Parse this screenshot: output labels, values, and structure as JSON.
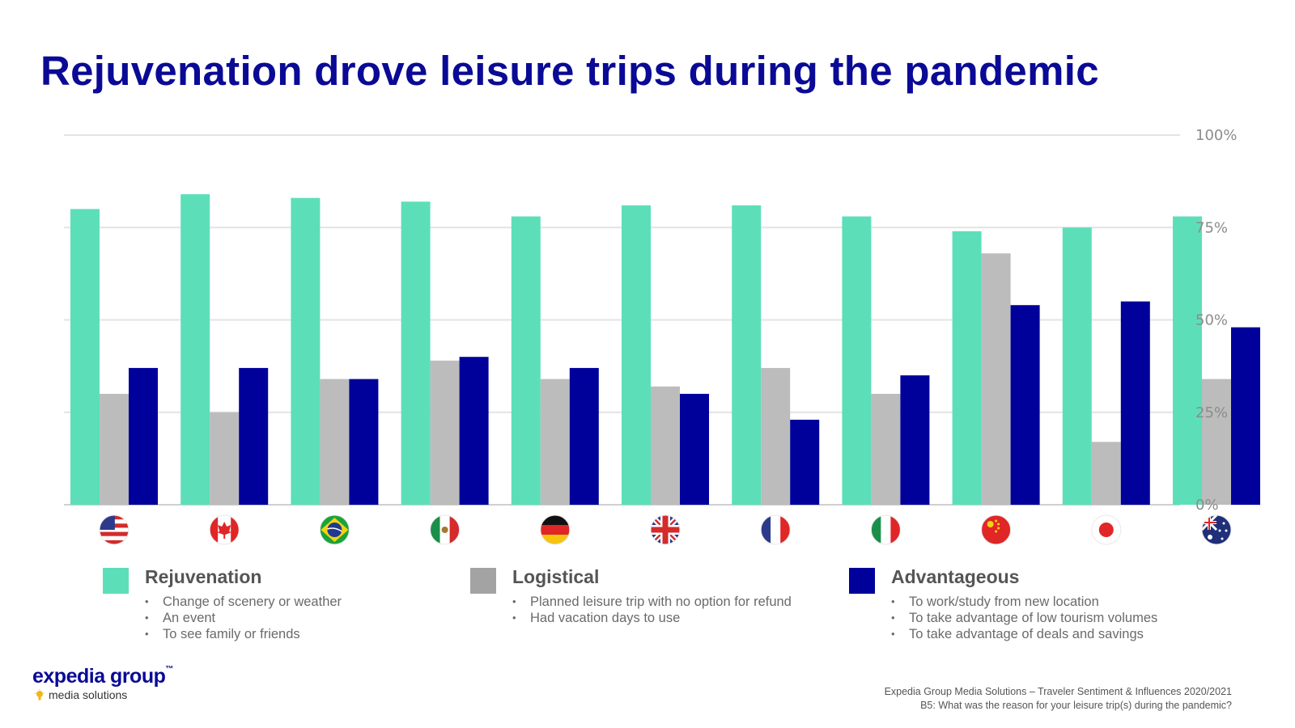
{
  "title": "Rejuvenation drove leisure trips during the pandemic",
  "chart_data": {
    "type": "bar",
    "categories": [
      "United States",
      "Canada",
      "Brazil",
      "Mexico",
      "Germany",
      "United Kingdom",
      "France",
      "Italy",
      "China",
      "Japan",
      "Australia"
    ],
    "flag_icons": [
      "us-flag-icon",
      "canada-flag-icon",
      "brazil-flag-icon",
      "mexico-flag-icon",
      "germany-flag-icon",
      "uk-flag-icon",
      "france-flag-icon",
      "italy-flag-icon",
      "china-flag-icon",
      "japan-flag-icon",
      "australia-flag-icon"
    ],
    "series": [
      {
        "name": "Rejuvenation",
        "color": "#5cdfb9",
        "values": [
          80,
          84,
          83,
          82,
          78,
          81,
          81,
          78,
          74,
          75,
          78
        ]
      },
      {
        "name": "Logistical",
        "color": "#bcbcbc",
        "values": [
          30,
          25,
          34,
          39,
          34,
          32,
          37,
          30,
          68,
          17,
          34
        ]
      },
      {
        "name": "Advantageous",
        "color": "#00009b",
        "values": [
          37,
          37,
          34,
          40,
          37,
          30,
          23,
          35,
          54,
          55,
          48
        ]
      }
    ],
    "ylim": [
      0,
      100
    ],
    "yticks": [
      0,
      25,
      50,
      75,
      100
    ],
    "ytick_labels": [
      "0%",
      "25%",
      "50%",
      "75%",
      "100%"
    ],
    "grid": true,
    "title": "",
    "xlabel": "",
    "ylabel": ""
  },
  "legend": [
    {
      "title": "Rejuvenation",
      "color": "#5cdfb9",
      "items": [
        "Change of scenery or weather",
        "An event",
        "To see family or friends"
      ]
    },
    {
      "title": "Logistical",
      "color": "#a3a3a3",
      "items": [
        "Planned leisure trip with no option for refund",
        "Had vacation days to use"
      ]
    },
    {
      "title": "Advantageous",
      "color": "#00009b",
      "items": [
        "To work/study from new location",
        "To take advantage of low tourism volumes",
        "To take advantage of deals and savings"
      ]
    }
  ],
  "logo": {
    "main": "expedia group",
    "tm": "™",
    "sub": "media solutions"
  },
  "source": {
    "line1": "Expedia Group Media Solutions – Traveler Sentiment & Influences 2020/2021",
    "line2": "B5: What was the reason for your leisure trip(s) during the pandemic?"
  }
}
